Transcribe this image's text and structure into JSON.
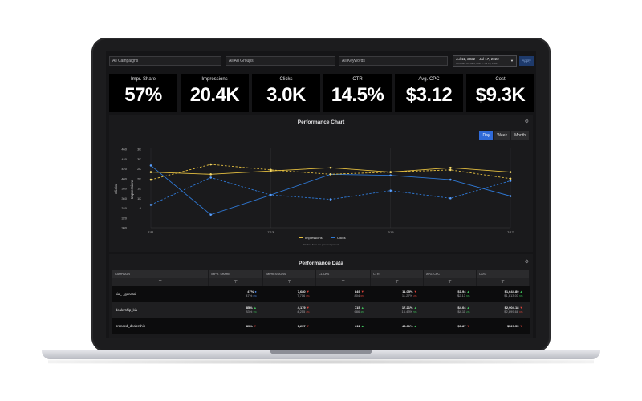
{
  "filters": {
    "campaigns": "All Campaigns",
    "ad_groups": "All Ad Groups",
    "keywords": "All Keywords",
    "date_range": "Jul 11, 2022 – Jul 17, 2022",
    "compare_range": "Compare to: Jul 4, 2022 – Jul 10, 2022",
    "apply": "Apply"
  },
  "kpis": [
    {
      "label": "Impr. Share",
      "value": "57%"
    },
    {
      "label": "Impressions",
      "value": "20.4K"
    },
    {
      "label": "Clicks",
      "value": "3.0K"
    },
    {
      "label": "CTR",
      "value": "14.5%"
    },
    {
      "label": "Avg. CPC",
      "value": "$3.12"
    },
    {
      "label": "Cost",
      "value": "$9.3K"
    }
  ],
  "chart": {
    "title": "Performance Chart",
    "granularity": [
      "Day",
      "Week",
      "Month"
    ],
    "active_granularity": "Day",
    "note": "Dashed lines are previous period.",
    "colors": {
      "impressions": "#e6c040",
      "clicks": "#2f79d6"
    }
  },
  "chart_data": {
    "type": "line",
    "x": [
      "7/11",
      "7/12",
      "7/13",
      "7/14",
      "7/15",
      "7/16",
      "7/17"
    ],
    "x_ticks": [
      "7/11",
      "7/13",
      "7/15",
      "7/17"
    ],
    "left_axis": {
      "label": "Clicks",
      "ticks": [
        300,
        320,
        340,
        360,
        380,
        400,
        420,
        440,
        460
      ]
    },
    "right_axis": {
      "label": "Impressions",
      "ticks": [
        "0",
        "1K",
        "1K",
        "2K",
        "2K",
        "3K",
        "3K"
      ]
    },
    "series": [
      {
        "name": "Impressions",
        "values": [
          2.55,
          2.45,
          2.6,
          2.75,
          2.55,
          2.75,
          2.55
        ]
      },
      {
        "name": "Clicks",
        "values": [
          2.85,
          0.6,
          1.5,
          2.45,
          2.4,
          2.2,
          1.45
        ]
      },
      {
        "name": "Impressions (previous)",
        "values": [
          2.2,
          2.9,
          2.65,
          2.45,
          2.55,
          2.65,
          2.25
        ]
      },
      {
        "name": "Clicks (previous)",
        "values": [
          1.05,
          2.3,
          1.5,
          1.3,
          1.7,
          1.35,
          2.15
        ]
      }
    ],
    "legend": [
      "Impressions",
      "Clicks"
    ],
    "legend_position": "bottom",
    "ylim": [
      0,
      3.6
    ],
    "grid": true
  },
  "table": {
    "title": "Performance Data",
    "columns": [
      "CAMPAIGN",
      "IMPR. SHARE",
      "IMPRESSIONS",
      "CLICKS",
      "CTR",
      "AVG. CPC",
      "COST"
    ],
    "rows": [
      {
        "name": "kia_-_general",
        "cells": [
          {
            "v": "47%",
            "p": "47%",
            "d": "0%",
            "t": "nt"
          },
          {
            "v": "7,680",
            "p": "7,716",
            "d": "0%",
            "t": "dn"
          },
          {
            "v": "849",
            "p": "804",
            "d": "6%",
            "t": "dn"
          },
          {
            "v": "11.05%",
            "p": "11.27%",
            "d": "2%",
            "t": "dn"
          },
          {
            "v": "$1.94",
            "p": "$2.13",
            "d": "9%",
            "t": "up"
          },
          {
            "v": "$1,644.89",
            "p": "$1,813.03",
            "d": "9%",
            "t": "up"
          }
        ]
      },
      {
        "name": "dealership_kia",
        "cells": [
          {
            "v": "85%",
            "p": "83%",
            "d": "3%",
            "t": "up"
          },
          {
            "v": "4,179",
            "p": "4,255",
            "d": "2%",
            "t": "dn"
          },
          {
            "v": "715",
            "p": "686",
            "d": "4%",
            "t": "up"
          },
          {
            "v": "17.21%",
            "p": "16.43%",
            "d": "5%",
            "t": "up"
          },
          {
            "v": "$4.04",
            "p": "$4.11",
            "d": "2%",
            "t": "up"
          },
          {
            "v": "$2,904.18",
            "p": "$2,899.68",
            "d": "0%",
            "t": "dn"
          }
        ]
      },
      {
        "name": "branded_dealership",
        "cells": [
          {
            "v": "89%",
            "p": "",
            "d": "",
            "t": "dn"
          },
          {
            "v": "1,257",
            "p": "",
            "d": "",
            "t": "dn"
          },
          {
            "v": "611",
            "p": "",
            "d": "",
            "t": "up"
          },
          {
            "v": "48.61%",
            "p": "",
            "d": "",
            "t": "up"
          },
          {
            "v": "$0.87",
            "p": "",
            "d": "",
            "t": "dn"
          },
          {
            "v": "$529.55",
            "p": "",
            "d": "",
            "t": "dn"
          }
        ]
      }
    ]
  }
}
